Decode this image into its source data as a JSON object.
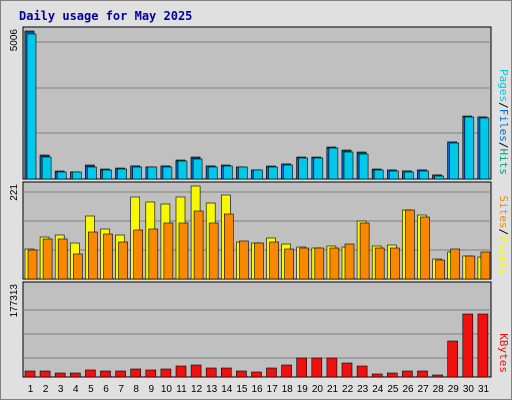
{
  "title": "Daily usage for May 2025",
  "colors": {
    "pages": "#00c8e8",
    "files": "#0070d8",
    "hits": "#00a878",
    "visits": "#f8f800",
    "sites": "#f88800",
    "kbytes": "#f01010",
    "weekend_day_label": "#008040",
    "weekday_day_label": "#000000"
  },
  "chart_data": [
    {
      "type": "bar",
      "panel": "hits-files-pages",
      "categories": [
        "1",
        "2",
        "3",
        "4",
        "5",
        "6",
        "7",
        "8",
        "9",
        "10",
        "11",
        "12",
        "13",
        "14",
        "15",
        "16",
        "17",
        "18",
        "19",
        "20",
        "21",
        "22",
        "23",
        "24",
        "25",
        "26",
        "27",
        "28",
        "29",
        "30",
        "31"
      ],
      "ymax_label": "5006",
      "ylim": [
        0,
        5006
      ],
      "series": [
        {
          "name": "Hits",
          "values": [
            5006,
            800,
            260,
            250,
            460,
            330,
            360,
            450,
            420,
            440,
            640,
            730,
            450,
            460,
            420,
            320,
            430,
            510,
            730,
            730,
            1080,
            970,
            900,
            330,
            310,
            280,
            300,
            140,
            1260,
            2130,
            2110
          ]
        },
        {
          "name": "Files",
          "values": [
            4980,
            780,
            250,
            240,
            440,
            320,
            350,
            440,
            410,
            430,
            620,
            710,
            440,
            450,
            410,
            310,
            420,
            500,
            720,
            720,
            1060,
            950,
            880,
            320,
            300,
            270,
            290,
            130,
            1240,
            2110,
            2100
          ]
        },
        {
          "name": "Pages",
          "values": [
            4900,
            760,
            230,
            220,
            420,
            300,
            330,
            420,
            390,
            410,
            600,
            690,
            420,
            430,
            390,
            290,
            400,
            480,
            700,
            700,
            1040,
            930,
            860,
            300,
            280,
            250,
            270,
            110,
            1220,
            2090,
            2070
          ]
        }
      ],
      "vertical_labels": [
        "Pages",
        "Files",
        "Hits"
      ],
      "grid": true
    },
    {
      "type": "bar",
      "panel": "visits-sites",
      "categories": [
        "1",
        "2",
        "3",
        "4",
        "5",
        "6",
        "7",
        "8",
        "9",
        "10",
        "11",
        "12",
        "13",
        "14",
        "15",
        "16",
        "17",
        "18",
        "19",
        "20",
        "21",
        "22",
        "23",
        "24",
        "25",
        "26",
        "27",
        "28",
        "29",
        "30",
        "31"
      ],
      "ymax_label": "221",
      "ylim": [
        0,
        221
      ],
      "series": [
        {
          "name": "Visits",
          "values": [
            72,
            100,
            104,
            86,
            150,
            118,
            104,
            194,
            182,
            178,
            194,
            221,
            180,
            200,
            88,
            85,
            98,
            82,
            76,
            74,
            78,
            76,
            138,
            78,
            80,
            165,
            152,
            48,
            64,
            54,
            52
          ]
        },
        {
          "name": "Sites",
          "values": [
            70,
            96,
            96,
            60,
            112,
            108,
            88,
            116,
            120,
            132,
            134,
            162,
            132,
            154,
            90,
            85,
            88,
            72,
            74,
            74,
            74,
            84,
            132,
            74,
            74,
            165,
            148,
            46,
            72,
            54,
            64
          ]
        }
      ],
      "vertical_labels": [
        "Sites",
        "Visits"
      ],
      "grid": true
    },
    {
      "type": "bar",
      "panel": "kbytes",
      "categories": [
        "1",
        "2",
        "3",
        "4",
        "5",
        "6",
        "7",
        "8",
        "9",
        "10",
        "11",
        "12",
        "13",
        "14",
        "15",
        "16",
        "17",
        "18",
        "19",
        "20",
        "21",
        "22",
        "23",
        "24",
        "25",
        "26",
        "27",
        "28",
        "29",
        "30",
        "31"
      ],
      "ymax_label": "177313",
      "ylim": [
        0,
        177313
      ],
      "series": [
        {
          "name": "KBytes",
          "values": [
            12000,
            11000,
            7000,
            8000,
            13000,
            11000,
            12000,
            15000,
            13000,
            16000,
            22000,
            24000,
            18000,
            17000,
            12000,
            9000,
            18000,
            24000,
            37000,
            37000,
            37000,
            27000,
            22000,
            6000,
            7000,
            11000,
            12000,
            3500,
            70000,
            123000,
            122000
          ]
        }
      ],
      "vertical_labels": [
        "KBytes"
      ],
      "grid": true
    }
  ],
  "x_axis": {
    "labels": [
      "1",
      "2",
      "3",
      "4",
      "5",
      "6",
      "7",
      "8",
      "9",
      "10",
      "11",
      "12",
      "13",
      "14",
      "15",
      "16",
      "17",
      "18",
      "19",
      "20",
      "21",
      "22",
      "23",
      "24",
      "25",
      "26",
      "27",
      "28",
      "29",
      "30",
      "31"
    ],
    "weekend_days": [
      3,
      4,
      10,
      11,
      17,
      18,
      24,
      25,
      31
    ]
  }
}
